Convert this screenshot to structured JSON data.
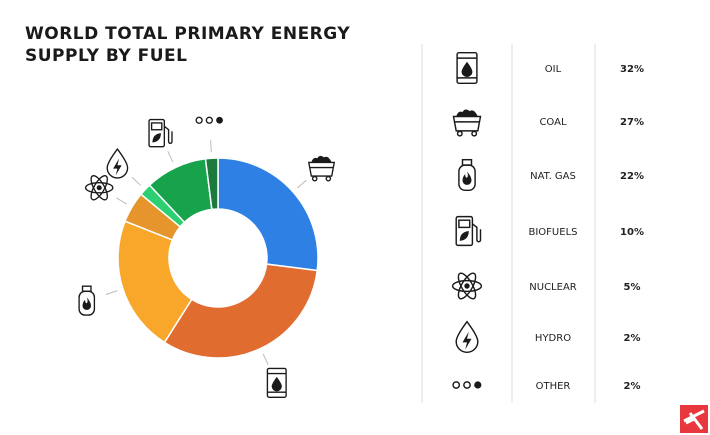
{
  "chart_data": {
    "type": "donut",
    "title": "WORLD TOTAL PRIMARY ENERGY SUPPLY BY FUEL",
    "categories": [
      "OIL",
      "COAL",
      "NAT. GAS",
      "BIOFUELS",
      "NUCLEAR",
      "HYDRO",
      "OTHER"
    ],
    "values": [
      32,
      27,
      22,
      10,
      5,
      2,
      2
    ],
    "value_labels": [
      "32%",
      "27%",
      "22%",
      "10%",
      "5%",
      "2%",
      "2%"
    ],
    "colors": [
      "#e06c2f",
      "#2f80e4",
      "#f8a72a",
      "#16a34c",
      "#e5952b",
      "#2ccf72",
      "#1d7a3d"
    ]
  }
}
